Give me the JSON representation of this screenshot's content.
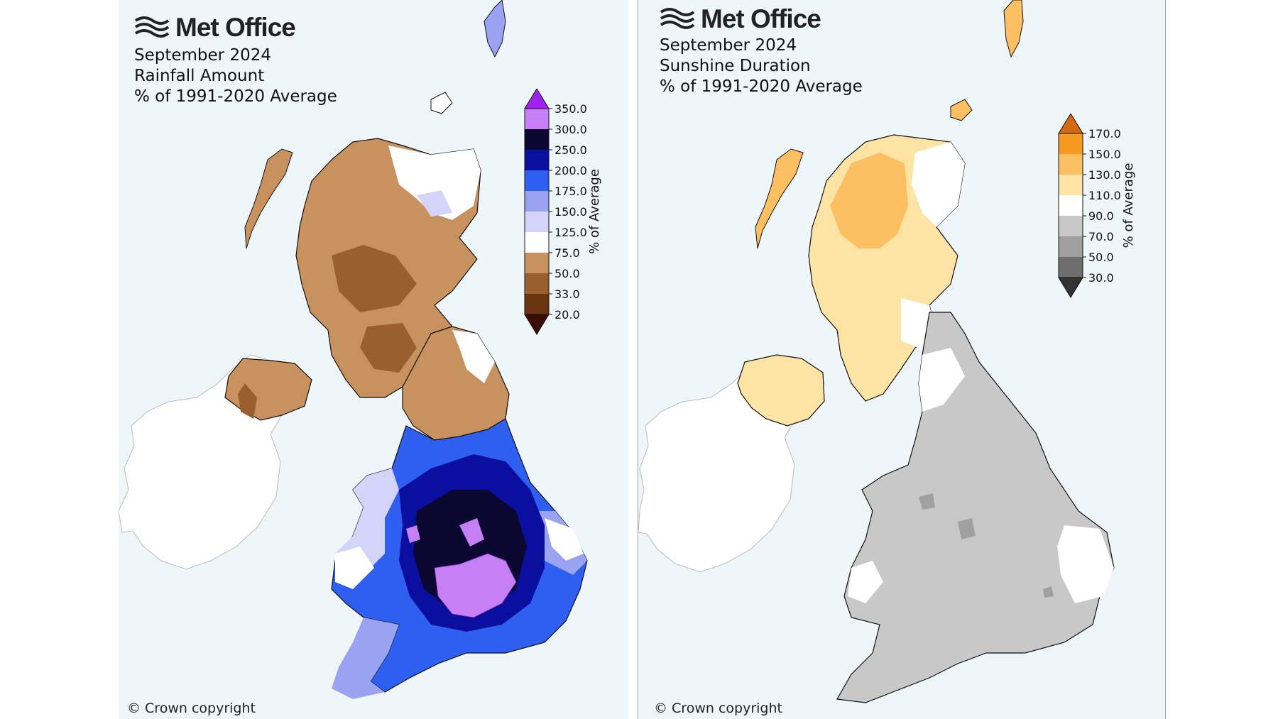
{
  "panels": [
    {
      "id": "rain",
      "logo": "Met Office",
      "title_lines": [
        "September 2024",
        "Rainfall Amount",
        "% of 1991-2020 Average"
      ],
      "copyright": "© Crown copyright",
      "colorbar": {
        "label": "% of Average",
        "ticks": [
          "350.0",
          "300.0",
          "250.0",
          "200.0",
          "175.0",
          "150.0",
          "125.0",
          "75.0",
          "50.0",
          "33.0",
          "20.0"
        ],
        "top_arrow_color": "#a020f0",
        "bottom_arrow_color": "#3a0e05",
        "colors": [
          "#c77ff5",
          "#0a0830",
          "#0b0fa0",
          "#2f5ff0",
          "#9aa2f2",
          "#d4d4fa",
          "#ffffff",
          "#c7925e",
          "#9a5f2e",
          "#6a3510"
        ]
      }
    },
    {
      "id": "sun",
      "logo": "Met Office",
      "title_lines": [
        "September 2024",
        "Sunshine Duration",
        "% of 1991-2020 Average"
      ],
      "copyright": "© Crown copyright",
      "colorbar": {
        "label": "% of Average",
        "ticks": [
          "170.0",
          "150.0",
          "130.0",
          "110.0",
          "90.0",
          "70.0",
          "50.0",
          "30.0"
        ],
        "top_arrow_color": "#d46a10",
        "bottom_arrow_color": "#333333",
        "colors": [
          "#f59a1e",
          "#fcc062",
          "#fde4a4",
          "#ffffff",
          "#c8c8c8",
          "#a0a0a0",
          "#6e6e6e"
        ]
      }
    }
  ],
  "colors": {
    "sea": "#eef6fa",
    "ireland": "#ffffff",
    "coast": "#111111"
  }
}
